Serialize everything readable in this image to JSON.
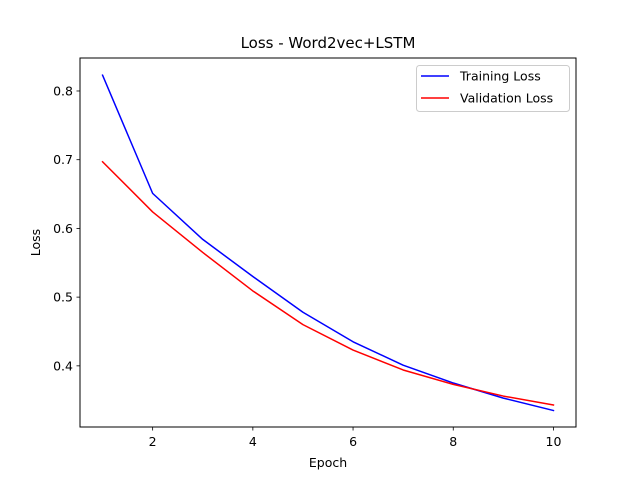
{
  "chart_data": {
    "type": "line",
    "title": "Loss - Word2vec+LSTM",
    "xlabel": "Epoch",
    "ylabel": "Loss",
    "x": [
      1,
      2,
      3,
      4,
      5,
      6,
      7,
      8,
      9,
      10
    ],
    "series": [
      {
        "name": "Training Loss",
        "color": "#0000ff",
        "values": [
          0.823,
          0.651,
          0.584,
          0.53,
          0.478,
          0.435,
          0.401,
          0.375,
          0.353,
          0.335
        ]
      },
      {
        "name": "Validation Loss",
        "color": "#ff0000",
        "values": [
          0.697,
          0.624,
          0.565,
          0.509,
          0.46,
          0.423,
          0.394,
          0.373,
          0.356,
          0.343
        ]
      }
    ],
    "xlim": [
      0.55,
      10.45
    ],
    "ylim": [
      0.311,
      0.848
    ],
    "xticks": [
      2,
      4,
      6,
      8,
      10
    ],
    "yticks": [
      0.4,
      0.5,
      0.6,
      0.7,
      0.8
    ],
    "xtick_labels": [
      "2",
      "4",
      "6",
      "8",
      "10"
    ],
    "ytick_labels": [
      "0.4",
      "0.5",
      "0.6",
      "0.7",
      "0.8"
    ],
    "grid": false,
    "legend_position": "top-right"
  }
}
